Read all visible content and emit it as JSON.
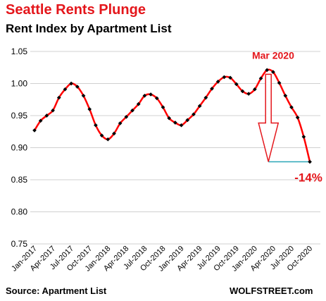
{
  "title": "Seattle Rents Plunge",
  "subtitle": "Rent Index by Apartment List",
  "footer": {
    "source": "Source: Apartment List",
    "brand": "WOLFSTREET.com"
  },
  "colors": {
    "title": "#e4161b",
    "line": "#ff0000",
    "marker": "#000000",
    "gridline": "#d0d0d0",
    "annotation": "#e4161b",
    "reference_line": "#2aa7b8"
  },
  "chart_data": {
    "type": "line",
    "title": "Rent Index by Apartment List",
    "xlabel": "",
    "ylabel": "",
    "ylim": [
      0.75,
      1.05
    ],
    "yticks": [
      "0.75",
      "0.80",
      "0.85",
      "0.90",
      "0.95",
      "1.00",
      "1.05"
    ],
    "grid": "horizontal",
    "x_tick_labels": [
      "Jan-2017",
      "Apr-2017",
      "Jul-2017",
      "Oct-2017",
      "Jan-2018",
      "Apr-2018",
      "Jul-2018",
      "Oct-2018",
      "Jan-2019",
      "Apr-2019",
      "Jul-2019",
      "Oct-2019",
      "Jan-2020",
      "Apr-2020",
      "Jul-2020",
      "Oct-2020"
    ],
    "x": [
      "Jan-2017",
      "Feb-2017",
      "Mar-2017",
      "Apr-2017",
      "May-2017",
      "Jun-2017",
      "Jul-2017",
      "Aug-2017",
      "Sep-2017",
      "Oct-2017",
      "Nov-2017",
      "Dec-2017",
      "Jan-2018",
      "Feb-2018",
      "Mar-2018",
      "Apr-2018",
      "May-2018",
      "Jun-2018",
      "Jul-2018",
      "Aug-2018",
      "Sep-2018",
      "Oct-2018",
      "Nov-2018",
      "Dec-2018",
      "Jan-2019",
      "Feb-2019",
      "Mar-2019",
      "Apr-2019",
      "May-2019",
      "Jun-2019",
      "Jul-2019",
      "Aug-2019",
      "Sep-2019",
      "Oct-2019",
      "Nov-2019",
      "Dec-2019",
      "Jan-2020",
      "Feb-2020",
      "Mar-2020",
      "Apr-2020",
      "May-2020",
      "Jun-2020",
      "Jul-2020",
      "Aug-2020",
      "Sep-2020",
      "Oct-2020",
      "Nov-2020"
    ],
    "series": [
      {
        "values": [
          0.927,
          0.942,
          0.95,
          0.958,
          0.978,
          0.991,
          1.0,
          0.995,
          0.981,
          0.96,
          0.935,
          0.919,
          0.913,
          0.922,
          0.938,
          0.948,
          0.958,
          0.968,
          0.981,
          0.983,
          0.977,
          0.963,
          0.946,
          0.939,
          0.935,
          0.943,
          0.952,
          0.965,
          0.978,
          0.992,
          1.003,
          1.01,
          1.009,
          0.999,
          0.988,
          0.984,
          0.991,
          1.008,
          1.021,
          1.018,
          1.001,
          0.981,
          0.963,
          0.947,
          0.917,
          0.878,
          null
        ]
      }
    ],
    "annotations": [
      {
        "text": "Mar 2020",
        "x": "Apr-2020",
        "y": 1.021
      },
      {
        "text": "-14%",
        "x": "Oct-2020",
        "y": 0.878
      }
    ]
  }
}
